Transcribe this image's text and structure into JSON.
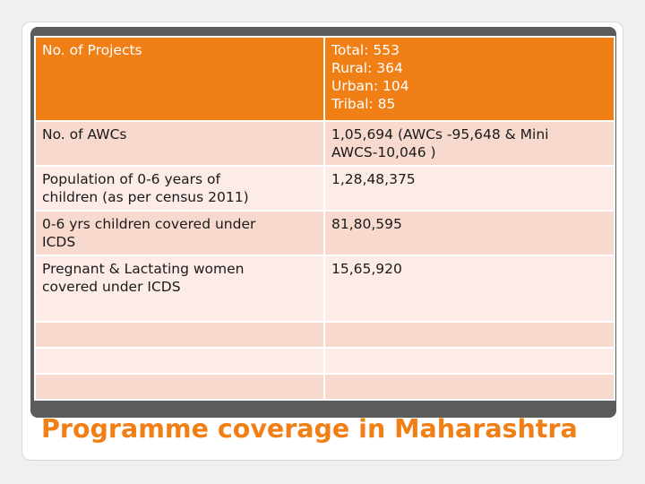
{
  "slide": {
    "title": "Programme coverage in Maharashtra"
  },
  "table": {
    "header": {
      "label": "No. of Projects",
      "values": [
        "Total: 553",
        "Rural: 364",
        "Urban: 104",
        "Tribal: 85"
      ]
    },
    "rows": [
      {
        "label_lines": [
          "No. of AWCs"
        ],
        "value_lines": [
          "1,05,694 (AWCs -95,648 & Mini",
          "AWCS-10,046 )"
        ]
      },
      {
        "label_lines": [
          "Population of 0-6 years of",
          "children (as per census 2011)"
        ],
        "value_lines": [
          "1,28,48,375"
        ]
      },
      {
        "label_lines": [
          "0-6 yrs children covered under",
          "ICDS"
        ],
        "value_lines": [
          "81,80,595"
        ]
      },
      {
        "label_lines": [
          "Pregnant & Lactating women",
          "covered under ICDS"
        ],
        "value_lines": [
          "15,65,920"
        ]
      }
    ]
  },
  "colors": {
    "accent": "#f07f16",
    "row_dark": "#f8d9cd",
    "row_light": "#fcebe6"
  }
}
